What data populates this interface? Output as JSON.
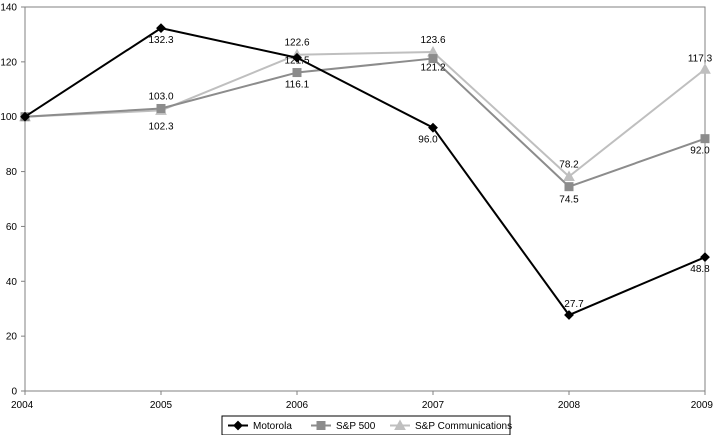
{
  "chart_data": {
    "type": "line",
    "x": [
      "2004",
      "2005",
      "2006",
      "2007",
      "2008",
      "2009"
    ],
    "ylim": [
      0,
      140
    ],
    "yticks": [
      0,
      20,
      40,
      60,
      80,
      100,
      120,
      140
    ],
    "grid": false,
    "legend_position": "bottom-center",
    "series": [
      {
        "name": "Motorola",
        "values": [
          100,
          132.3,
          121.5,
          96.0,
          27.7,
          48.8
        ],
        "labels": [
          "",
          "132.3",
          "121.5",
          "96.0",
          "27.7",
          "48.8"
        ],
        "color": "#000000",
        "marker": "diamond"
      },
      {
        "name": "S&P 500",
        "values": [
          100,
          103.0,
          116.1,
          121.2,
          74.5,
          92.0
        ],
        "labels": [
          "",
          "103.0",
          "116.1",
          "121.2",
          "74.5",
          "92.0"
        ],
        "color": "#8c8c8c",
        "marker": "square"
      },
      {
        "name": "S&P Communications",
        "values": [
          100,
          102.3,
          122.6,
          123.6,
          78.2,
          117.3
        ],
        "labels": [
          "",
          "102.3",
          "122.6",
          "123.6",
          "78.2",
          "117.3"
        ],
        "color": "#bfbfbf",
        "marker": "triangle"
      }
    ]
  }
}
